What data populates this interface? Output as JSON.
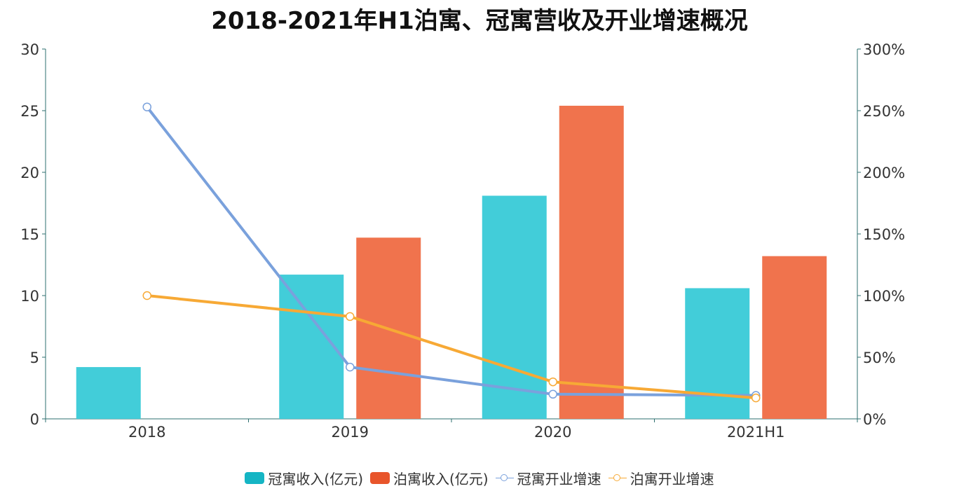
{
  "chart_data": {
    "type": "bar",
    "title": "2018-2021年H1泊寓、冠寓营收及开业增速概况",
    "categories": [
      "2018",
      "2019",
      "2020",
      "2021H1"
    ],
    "y_left": {
      "ylim": [
        0,
        30
      ],
      "ticks": [
        "0",
        "5",
        "10",
        "15",
        "20",
        "25",
        "30"
      ]
    },
    "y_right": {
      "ylim": [
        0,
        300
      ],
      "ticks": [
        "0%",
        "50%",
        "100%",
        "150%",
        "200%",
        "250%",
        "300%"
      ]
    },
    "series": [
      {
        "name": "冠寓收入(亿元)",
        "type": "bar",
        "axis": "left",
        "color": "#42cdd9",
        "legend_color": "#15b5c4",
        "values": [
          4.2,
          11.7,
          18.1,
          10.6
        ]
      },
      {
        "name": "泊寓收入(亿元)",
        "type": "bar",
        "axis": "left",
        "color": "#f0734d",
        "legend_color": "#e8552b",
        "values": [
          null,
          14.7,
          25.4,
          13.2
        ]
      },
      {
        "name": "冠寓开业增速",
        "type": "line",
        "axis": "right",
        "color": "#7aa1dc",
        "values": [
          253,
          42,
          20,
          19
        ]
      },
      {
        "name": "泊寓开业增速",
        "type": "line",
        "axis": "right",
        "color": "#f7a935",
        "values": [
          100,
          83,
          30,
          17
        ]
      }
    ],
    "grid": false,
    "legend_position": "bottom"
  }
}
